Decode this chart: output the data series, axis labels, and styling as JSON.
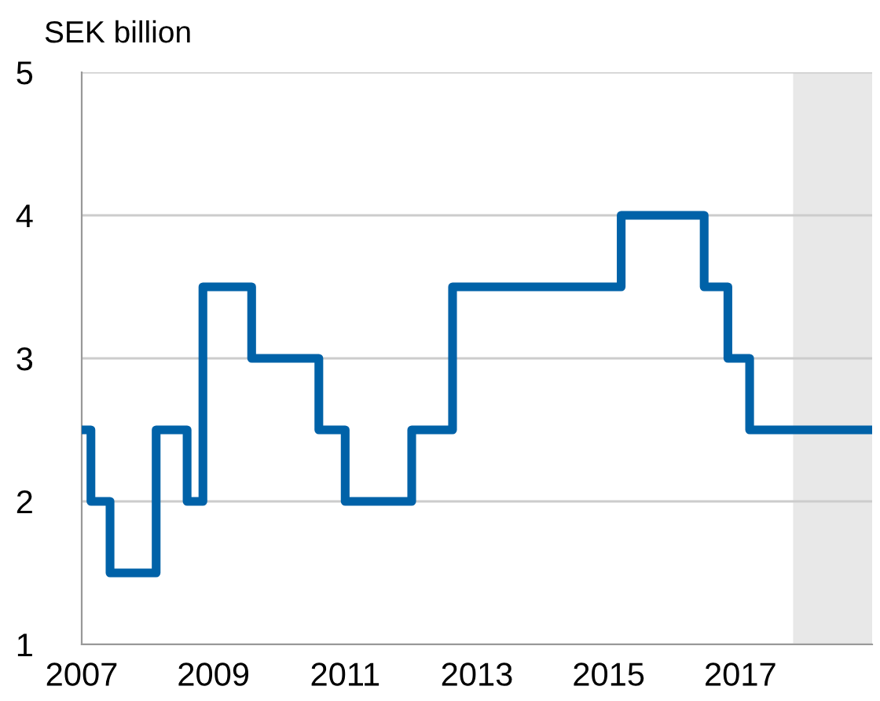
{
  "chart_data": {
    "type": "step",
    "ylabel": "SEK billion",
    "x": [
      2007.0,
      2007.14,
      2007.43,
      2008.13,
      2008.6,
      2008.84,
      2009.58,
      2010.6,
      2011.0,
      2012.01,
      2012.63,
      2015.19,
      2016.45,
      2016.81,
      2017.14,
      2019.0
    ],
    "series": [
      {
        "color": "#0062a8",
        "values": [
          2.5,
          2.0,
          1.5,
          2.5,
          2.0,
          3.5,
          3.0,
          2.5,
          2.0,
          2.5,
          3.5,
          4.0,
          3.5,
          3.0,
          2.5,
          2.5
        ]
      }
    ],
    "xlim": [
      2007,
      2019
    ],
    "xticks": [
      2007,
      2009,
      2011,
      2013,
      2015,
      2017
    ],
    "ylim": [
      1,
      5
    ],
    "yticks": [
      1,
      2,
      3,
      4,
      5
    ],
    "grid": "y",
    "legend": false,
    "bands": [
      {
        "axis": "x",
        "from": 2017.8,
        "to": 2019,
        "color": "#e8e8e8"
      }
    ]
  }
}
